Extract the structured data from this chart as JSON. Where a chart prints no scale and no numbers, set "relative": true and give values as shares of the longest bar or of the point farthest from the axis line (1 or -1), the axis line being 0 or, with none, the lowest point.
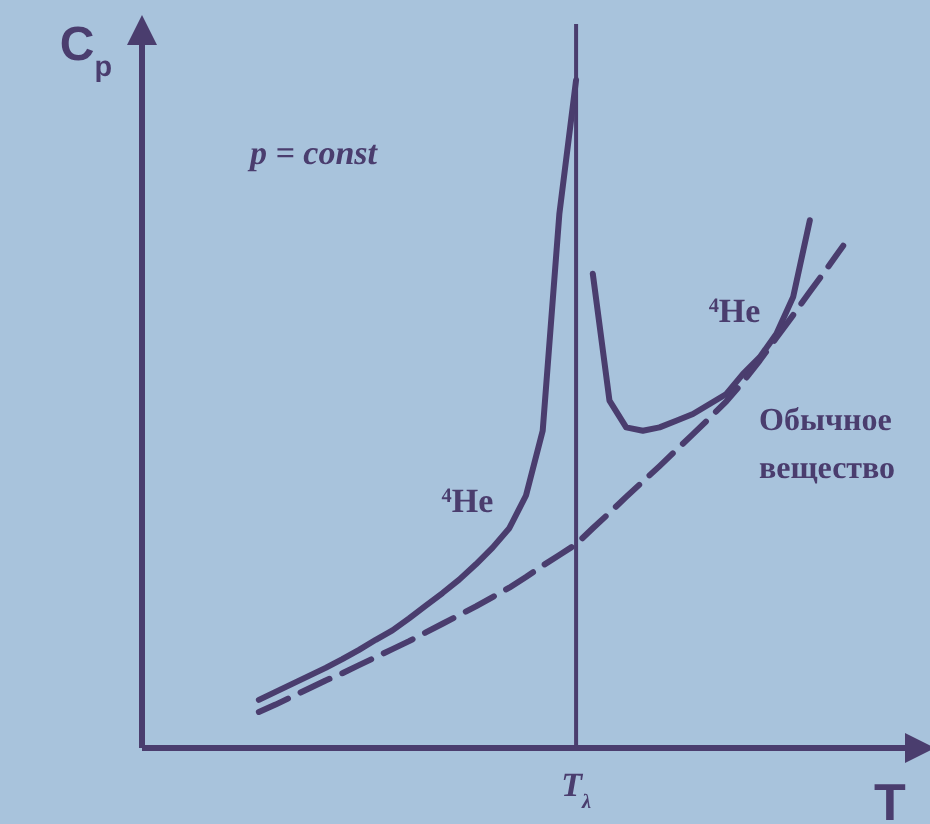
{
  "chart_data": {
    "type": "line",
    "relative": true,
    "xlabel": "T",
    "ylabel": "C$_{p}$",
    "categories": [
      null,
      null,
      null,
      null,
      null,
      null,
      null,
      null,
      null,
      null,
      null,
      null,
      null,
      null,
      null,
      null,
      null,
      null,
      null,
      null,
      null,
      null,
      null,
      null,
      null,
      null,
      null,
      null,
      null,
      null,
      null,
      null,
      null,
      null,
      null,
      null,
      null,
      null,
      null,
      null,
      null,
      null,
      null,
      null,
      null,
      null,
      null
    ],
    "marker": "none",
    "annotations": [
      "p = const"
    ],
    "ref_lines": [
      {
        "axis": "x",
        "label": "T$_{λ}$",
        "color": "#4a3d6e"
      }
    ],
    "series": [
      {
        "name": "$^{4}$He",
        "color": "#4a3d6e",
        "line_style": "solid",
        "values": [
          null,
          null,
          null,
          null,
          null,
          null,
          null,
          0.072,
          0.084,
          0.096,
          0.108,
          0.12,
          0.133,
          0.147,
          0.162,
          0.176,
          0.194,
          0.213,
          0.232,
          0.252,
          0.275,
          0.3,
          0.329,
          0.378,
          0.475,
          0.8,
          1,
          null,
          null,
          null,
          null,
          null,
          null,
          null,
          null,
          null,
          null,
          null,
          null,
          null,
          null,
          null,
          null,
          null,
          null,
          null,
          null
        ]
      },
      {
        "name": "$^{4}$He",
        "color": "#4a3d6e",
        "line_style": "solid",
        "values": [
          null,
          null,
          null,
          null,
          null,
          null,
          null,
          null,
          null,
          null,
          null,
          null,
          null,
          null,
          null,
          null,
          null,
          null,
          null,
          null,
          null,
          null,
          null,
          null,
          null,
          null,
          null,
          0.71,
          0.52,
          0.48,
          0.475,
          0.48,
          0.49,
          0.5,
          0.515,
          0.53,
          0.56,
          0.585,
          0.62,
          0.675,
          0.79,
          null,
          null,
          null,
          null,
          null,
          null
        ]
      },
      {
        "name": "Обычное вещество",
        "color": "#4a3d6e",
        "line_style": "dashed",
        "values": [
          null,
          null,
          null,
          null,
          null,
          null,
          null,
          0.054,
          0.065,
          0.077,
          0.089,
          0.101,
          0.112,
          0.124,
          0.136,
          0.148,
          0.16,
          0.173,
          0.186,
          0.199,
          0.212,
          0.226,
          0.24,
          0.256,
          0.273,
          0.289,
          0.305,
          0.329,
          0.352,
          0.376,
          0.399,
          0.422,
          0.446,
          0.47,
          0.494,
          0.519,
          0.548,
          0.58,
          0.614,
          0.648,
          0.683,
          0.717,
          0.752,
          null,
          null,
          null,
          null
        ]
      }
    ]
  }
}
